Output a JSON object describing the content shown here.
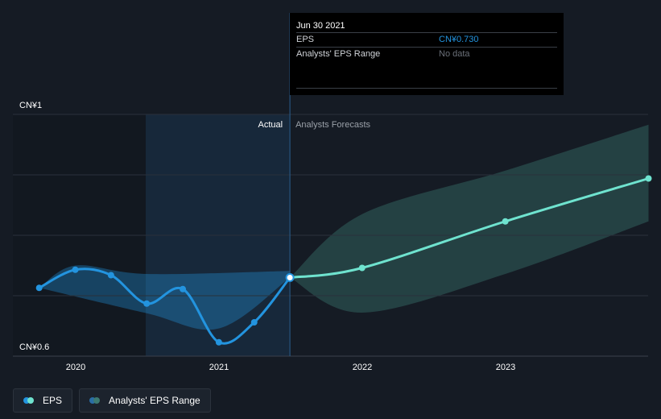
{
  "chart_data": {
    "type": "line",
    "y_axis": {
      "min_label": "CN¥0.6",
      "max_label": "CN¥1",
      "ylim": [
        0.6,
        1.0
      ]
    },
    "x_ticks": [
      "2020",
      "2021",
      "2022",
      "2023"
    ],
    "section_labels": {
      "actual": "Actual",
      "forecast": "Analysts Forecasts"
    },
    "series": [
      {
        "name": "EPS",
        "color": "#2394df",
        "points": [
          {
            "x": "2019-09-30",
            "y": 0.713
          },
          {
            "x": "2019-12-31",
            "y": 0.743
          },
          {
            "x": "2020-03-31",
            "y": 0.734
          },
          {
            "x": "2020-06-30",
            "y": 0.687
          },
          {
            "x": "2020-09-30",
            "y": 0.711
          },
          {
            "x": "2020-12-31",
            "y": 0.623
          },
          {
            "x": "2021-03-31",
            "y": 0.656
          },
          {
            "x": "2021-06-30",
            "y": 0.73
          }
        ]
      },
      {
        "name": "EPS forecast",
        "color": "#6fe3cf",
        "points": [
          {
            "x": "2021-06-30",
            "y": 0.73
          },
          {
            "x": "2021-12-31",
            "y": 0.746
          },
          {
            "x": "2022-12-31",
            "y": 0.823
          },
          {
            "x": "2023-12-31",
            "y": 0.894
          }
        ]
      }
    ],
    "ranges": [
      {
        "name": "Actual band",
        "color": "#2394df",
        "upper": [
          {
            "x": "2019-09-30",
            "y": 0.713
          },
          {
            "x": "2019-12-31",
            "y": 0.75
          },
          {
            "x": "2020-06-30",
            "y": 0.736
          },
          {
            "x": "2021-06-30",
            "y": 0.741
          }
        ],
        "lower": [
          {
            "x": "2019-09-30",
            "y": 0.713
          },
          {
            "x": "2020-06-30",
            "y": 0.671
          },
          {
            "x": "2021-01-01",
            "y": 0.646
          },
          {
            "x": "2021-06-30",
            "y": 0.73
          }
        ]
      },
      {
        "name": "Analysts' EPS Range",
        "color": "#3d7a72",
        "upper": [
          {
            "x": "2021-06-30",
            "y": 0.73
          },
          {
            "x": "2021-12-31",
            "y": 0.835
          },
          {
            "x": "2022-12-31",
            "y": 0.907
          },
          {
            "x": "2023-12-31",
            "y": 0.983
          }
        ],
        "lower": [
          {
            "x": "2021-06-30",
            "y": 0.73
          },
          {
            "x": "2021-12-31",
            "y": 0.672
          },
          {
            "x": "2022-12-31",
            "y": 0.736
          },
          {
            "x": "2023-12-31",
            "y": 0.823
          }
        ]
      }
    ],
    "highlight_date": "2021-06-30",
    "grid": true
  },
  "tooltip": {
    "date": "Jun 30 2021",
    "rows": [
      {
        "label": "EPS",
        "value": "CN¥0.730"
      },
      {
        "label": "Analysts' EPS Range",
        "value": "No data"
      }
    ]
  },
  "legend": {
    "items": [
      {
        "label": "EPS",
        "colors": [
          "#2394df",
          "#6fe3cf"
        ]
      },
      {
        "label": "Analysts' EPS Range",
        "colors": [
          "#2a6ea6",
          "#3d7a72"
        ]
      }
    ]
  }
}
